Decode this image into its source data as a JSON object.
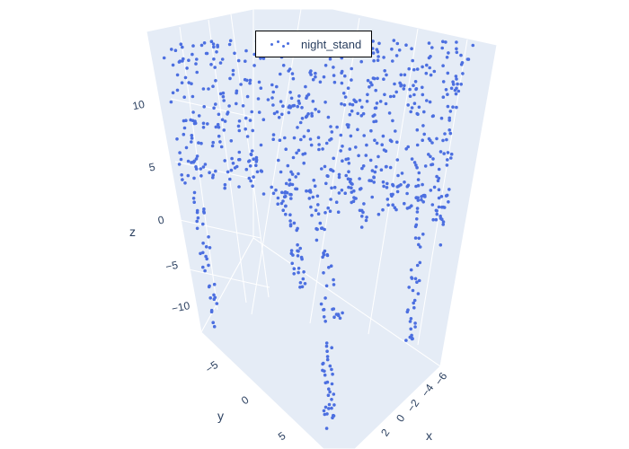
{
  "chart_data": {
    "type": "scatter",
    "dimensions": 3,
    "series": [
      {
        "name": "night_stand",
        "color": "#4c6fe0",
        "point_count_approx": 1024,
        "shape": "box-shaped nightstand point cloud: dense top surface near z≈10–13, four vertical legs extending down to z≈−15",
        "sample_points": [
          {
            "x": -6,
            "y": -6,
            "z": 12
          },
          {
            "x": 6,
            "y": -6,
            "z": 12
          },
          {
            "x": -6,
            "y": 6,
            "z": 12
          },
          {
            "x": 6,
            "y": 6,
            "z": 12
          },
          {
            "x": 0,
            "y": 0,
            "z": 12.5
          },
          {
            "x": -3,
            "y": 2,
            "z": 11
          },
          {
            "x": 3,
            "y": -2,
            "z": 10
          },
          {
            "x": -6,
            "y": -6,
            "z": -14
          },
          {
            "x": 6,
            "y": -6,
            "z": -14
          },
          {
            "x": -6,
            "y": 6,
            "z": -14
          },
          {
            "x": 6,
            "y": 6,
            "z": -14
          }
        ]
      }
    ],
    "axes": {
      "x": {
        "label": "x",
        "ticks": [
          "−6",
          "−4",
          "−2",
          "0",
          "2"
        ]
      },
      "y": {
        "label": "y",
        "ticks": [
          "−5",
          "0",
          "5"
        ]
      },
      "z": {
        "label": "z",
        "ticks": [
          "10",
          "5",
          "0",
          "−5",
          "−10"
        ]
      }
    },
    "legend": {
      "entries": [
        "night_stand"
      ],
      "placement": "top-center"
    },
    "grid": true,
    "background": "#e5ecf6"
  }
}
